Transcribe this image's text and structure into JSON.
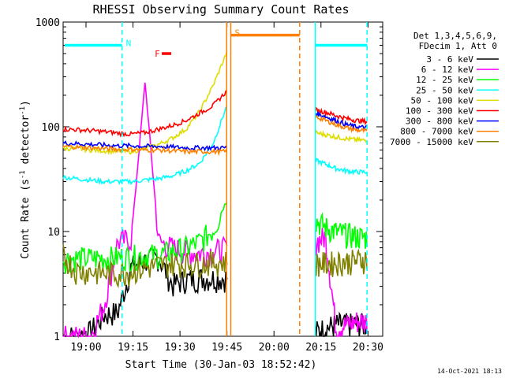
{
  "chart_data": {
    "type": "line",
    "title": "RHESSI Observing Summary Count Rates",
    "xlabel": "Start Time (30-Jan-03 18:52:42)",
    "ylabel": "Count Rate (s",
    "ylabel_sup1": "-1",
    "ylabel_mid": " detector",
    "ylabel_sup2": "-1",
    "ylabel_end": ")",
    "yscale": "log",
    "ylim": [
      1,
      1000
    ],
    "xlim_minutes": [
      0,
      102
    ],
    "x_ticks": [
      "19:00",
      "19:15",
      "19:30",
      "19:45",
      "20:00",
      "20:15",
      "20:30"
    ],
    "x_tick_minutes": [
      7.3,
      22.3,
      37.3,
      52.3,
      67.3,
      82.3,
      97.3
    ],
    "y_ticks": [
      "1",
      "10",
      "100",
      "1000"
    ],
    "y_tick_values": [
      1,
      10,
      100,
      1000
    ],
    "legend_header": [
      "Det 1,3,4,5,6,9,",
      "FDecim 1, Att 0"
    ],
    "legend_position": "right",
    "series": [
      {
        "name": "3 - 6 keV",
        "color": "#000000",
        "pre": [
          1.0,
          1.0,
          1.1,
          1.6,
          1.7,
          4.6,
          5.3,
          5.7,
          3.1,
          3.5,
          3.6,
          3.6,
          3.6
        ],
        "post": [
          1.1,
          1.2,
          1.3,
          1.3,
          1.3,
          1.3
        ]
      },
      {
        "name": "6 - 12 keV",
        "color": "#ff00ff",
        "pre": [
          1.0,
          1.0,
          1.0,
          2.0,
          8.0,
          8.5,
          270,
          8.0,
          7.0,
          6.5,
          6.2,
          6.5,
          7.0
        ],
        "post": [
          8.0,
          9.0,
          1.2,
          1.3,
          1.4,
          1.4
        ]
      },
      {
        "name": "12 - 25 keV",
        "color": "#00ff00",
        "pre": [
          5.5,
          5.6,
          5.6,
          5.6,
          5.7,
          5.8,
          6.0,
          6.0,
          6.5,
          7.0,
          8.0,
          10.5,
          20.0
        ],
        "post": [
          13.0,
          11.0,
          10.0,
          9.5,
          9.0,
          8.8
        ]
      },
      {
        "name": "25 - 50 keV",
        "color": "#00ffff",
        "pre": [
          33,
          32,
          31,
          30,
          30,
          30,
          31,
          32,
          34,
          38,
          45,
          70,
          160
        ],
        "post": [
          48,
          44,
          40,
          38,
          37,
          37
        ]
      },
      {
        "name": "50 - 100 keV",
        "color": "#dddd00",
        "pre": [
          62,
          62,
          60,
          59,
          58,
          58,
          62,
          68,
          78,
          95,
          140,
          250,
          520
        ],
        "post": [
          88,
          84,
          80,
          77,
          75,
          74
        ]
      },
      {
        "name": "100 - 300 keV",
        "color": "#ff0000",
        "pre": [
          95,
          94,
          92,
          90,
          87,
          85,
          88,
          95,
          103,
          115,
          135,
          160,
          220
        ],
        "post": [
          145,
          138,
          128,
          120,
          115,
          112
        ]
      },
      {
        "name": "300 - 800 keV",
        "color": "#0000ff",
        "pre": [
          70,
          69,
          68,
          67,
          66,
          66,
          65,
          65,
          64,
          63,
          63,
          63,
          63
        ],
        "post": [
          135,
          125,
          115,
          105,
          100,
          98
        ]
      },
      {
        "name": "800 - 7000 keV",
        "color": "#ff8000",
        "pre": [
          65,
          64,
          63,
          62,
          61,
          61,
          60,
          60,
          59,
          58,
          58,
          58,
          58
        ],
        "post": [
          125,
          115,
          105,
          98,
          93,
          91
        ]
      },
      {
        "name": "7000 - 15000 keV",
        "color": "#808000",
        "pre": [
          6.0,
          4.2,
          4.2,
          4.0,
          4.0,
          4.2,
          4.5,
          4.8,
          5.0,
          5.0,
          5.0,
          5.1,
          5.2
        ],
        "post": [
          5.0,
          5.0,
          5.1,
          5.2,
          5.3,
          5.5
        ]
      }
    ],
    "pre_span_minutes": [
      0,
      52.3
    ],
    "post_span_minutes": [
      80.5,
      97
    ],
    "annotations": [
      {
        "label": "N",
        "color": "#00ffff",
        "bar_minutes": [
          0,
          18.8
        ],
        "marker_minute": 18.8,
        "value": 600
      },
      {
        "label": "F",
        "color": "#ff0000",
        "bar_minutes": [
          31.5,
          34.5
        ],
        "marker_minute": null,
        "value": 500
      },
      {
        "label": "S",
        "color": "#ff8000",
        "bar_minutes": [
          53.5,
          75.5
        ],
        "marker_minute": 53.5,
        "value": 750
      },
      {
        "label": "",
        "color": "#00ffff",
        "bar_minutes": [
          80.5,
          97
        ],
        "marker_minute": 97,
        "value": 600
      }
    ],
    "region_lines": [
      {
        "minute": 52.2,
        "color": "#ff8000",
        "style": "solid"
      },
      {
        "minute": 53.5,
        "color": "#ff8000",
        "style": "solid"
      },
      {
        "minute": 75.5,
        "color": "#ff8000",
        "style": "dashed"
      },
      {
        "minute": 80.5,
        "color": "#00ffff",
        "style": "solid"
      },
      {
        "minute": 18.8,
        "color": "#00ffff",
        "style": "dashed"
      },
      {
        "minute": 97,
        "color": "#00ffff",
        "style": "dashed"
      }
    ],
    "footer_timestamp": "14-Oct-2021 18:13"
  }
}
